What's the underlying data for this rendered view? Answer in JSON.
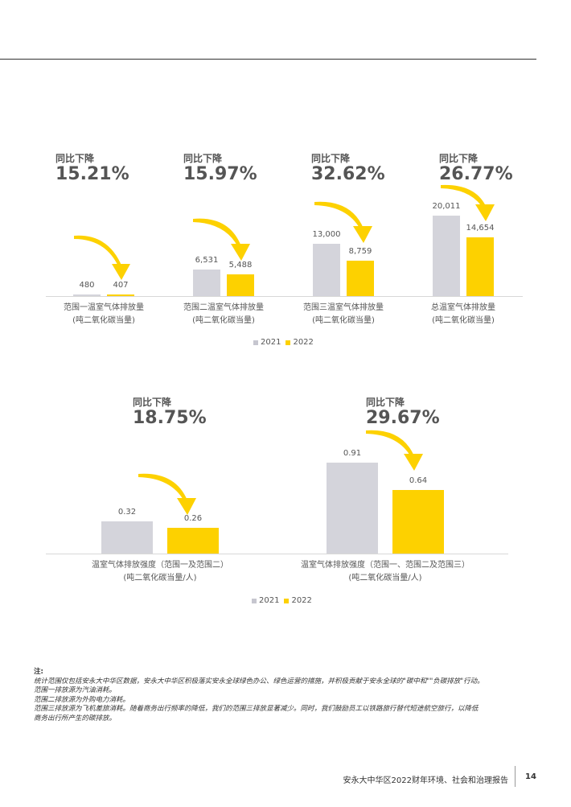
{
  "kpis": [
    {
      "caption": "同比下降",
      "value": "15.21%"
    },
    {
      "caption": "同比下降",
      "value": "15.97%"
    },
    {
      "caption": "同比下降",
      "value": "32.62%"
    },
    {
      "caption": "同比下降",
      "value": "26.77%"
    },
    {
      "caption": "同比下降",
      "value": "18.75%"
    },
    {
      "caption": "同比下降",
      "value": "29.67%"
    }
  ],
  "chart_data": [
    {
      "type": "bar",
      "categories": [
        "范围一温室气体排放量\n(吨二氧化碳当量)",
        "范围二温室气体排放量\n(吨二氧化碳当量)",
        "范围三温室气体排放量\n(吨二氧化碳当量)",
        "总温室气体排放量\n(吨二氧化碳当量)"
      ],
      "category_lines": [
        [
          "范围一温室气体排放量",
          "(吨二氧化碳当量)"
        ],
        [
          "范围二温室气体排放量",
          "(吨二氧化碳当量)"
        ],
        [
          "范围三温室气体排放量",
          "(吨二氧化碳当量)"
        ],
        [
          "总温室气体排放量",
          "(吨二氧化碳当量)"
        ]
      ],
      "series": [
        {
          "name": "2021",
          "values": [
            480,
            6531,
            13000,
            20011
          ],
          "labels": [
            "480",
            "6,531",
            "13,000",
            "20,011"
          ]
        },
        {
          "name": "2022",
          "values": [
            407,
            5488,
            8759,
            14654
          ],
          "labels": [
            "407",
            "5,488",
            "8,759",
            "14,654"
          ]
        }
      ],
      "legend": "bottom-center"
    },
    {
      "type": "bar",
      "categories": [
        "温室气体排放强度（范围一及范围二）\n(吨二氧化碳当量/人)",
        "温室气体排放强度（范围一、范围二及范围三）\n(吨二氧化碳当量/人)"
      ],
      "category_lines": [
        [
          "温室气体排放强度（范围一及范围二）",
          "(吨二氧化碳当量/人)"
        ],
        [
          "温室气体排放强度（范围一、范围二及范围三）",
          "(吨二氧化碳当量/人)"
        ]
      ],
      "series": [
        {
          "name": "2021",
          "values": [
            0.32,
            0.91
          ],
          "labels": [
            "0.32",
            "0.91"
          ]
        },
        {
          "name": "2022",
          "values": [
            0.26,
            0.64
          ],
          "labels": [
            "0.26",
            "0.64"
          ]
        }
      ],
      "legend": "bottom-center"
    }
  ],
  "legend_labels": [
    "2021",
    "2022"
  ],
  "colors": {
    "y2021": "#d4d4db",
    "y2022": "#fdd100",
    "arrow": "#fdd100"
  },
  "notes": {
    "title": "注:",
    "lines": [
      "统计范围仅包括安永大中华区数据，安永大中华区积极落实安永全球绿色办公、绿色运营的措施，并积极贡献于安永全球的\"碳中和\"\"负碳排放\"行动。",
      "范围一排放源为汽油消耗。",
      "范围二排放源为外购电力消耗。",
      "范围三排放源为飞机差旅消耗。随着商务出行频率的降低，我们的范围三排放显著减少。同时，我们鼓励员工以铁路旅行替代短途航空旅行，以降低",
      "商务出行所产生的碳排放。"
    ]
  },
  "footer": {
    "report_title": "安永大中华区2022财年环境、社会和治理报告",
    "page_number": "14"
  }
}
